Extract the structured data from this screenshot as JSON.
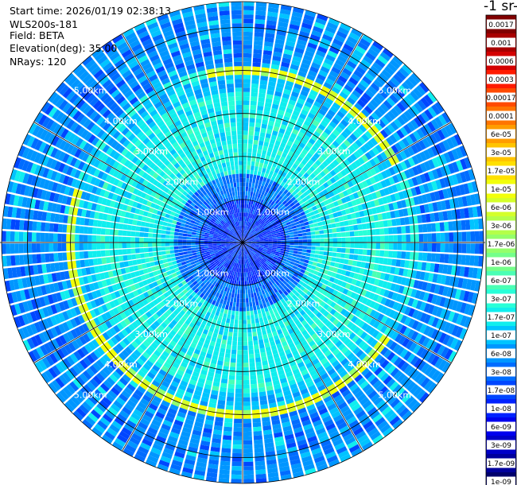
{
  "header": {
    "start_time": "Start time: 2026/01/19 02:38:13",
    "station": "WLS200s-181",
    "field": "Field: BETA",
    "elevation": "Elevation(deg): 35.00",
    "nrays": "NRays: 120"
  },
  "colorbar": {
    "title": "-1 sr-",
    "labels": [
      "0.0017",
      "0.001",
      "0.0006",
      "0.0003",
      "0.00017",
      "0.0001",
      "6e-05",
      "3e-05",
      "1.7e-05",
      "1e-05",
      "6e-06",
      "3e-06",
      "1.7e-06",
      "1e-06",
      "6e-07",
      "3e-07",
      "1.7e-07",
      "1e-07",
      "6e-08",
      "3e-08",
      "1.7e-08",
      "1e-08",
      "6e-09",
      "3e-09",
      "1.7e-09",
      "1e-09"
    ],
    "colors": [
      "#800000",
      "#a80000",
      "#d40000",
      "#ff1a00",
      "#ff4a00",
      "#ff7400",
      "#ff9c00",
      "#ffc400",
      "#ffe000",
      "#f2ff0a",
      "#d4ff2a",
      "#b4ff4a",
      "#94ff6a",
      "#74ff8a",
      "#4affb4",
      "#28ffd8",
      "#10eeee",
      "#00c4ff",
      "#0096ff",
      "#006cff",
      "#0046ff",
      "#0022ff",
      "#0000ee",
      "#0000c8",
      "#00009c",
      "#00006c"
    ]
  },
  "chart_data": {
    "type": "polar-ppi",
    "field": "BETA",
    "elevation_deg": 35.0,
    "n_rays": 120,
    "range_km_max": 5.6,
    "range_ring_labels": [
      "1.00km",
      "2.00km",
      "3.00km",
      "4.00km",
      "5.00km"
    ],
    "range_rings_km": [
      1,
      2,
      3,
      4,
      5
    ],
    "zones": [
      {
        "from_km": 0.0,
        "to_km": 1.0,
        "dominant": "1e-08 to 3e-08"
      },
      {
        "from_km": 1.0,
        "to_km": 1.6,
        "dominant": "3e-08 to 1e-07"
      },
      {
        "from_km": 1.6,
        "to_km": 3.5,
        "dominant": "1.7e-07 to 3e-07"
      },
      {
        "from_km": 3.5,
        "to_km": 3.9,
        "dominant": "6e-08 to 1e-07"
      },
      {
        "from_km": 3.9,
        "to_km": 4.1,
        "dominant": "3e-06 to 1.7e-05"
      },
      {
        "from_km": 4.1,
        "to_km": 5.6,
        "dominant": "1e-08 to 1e-07"
      }
    ]
  }
}
